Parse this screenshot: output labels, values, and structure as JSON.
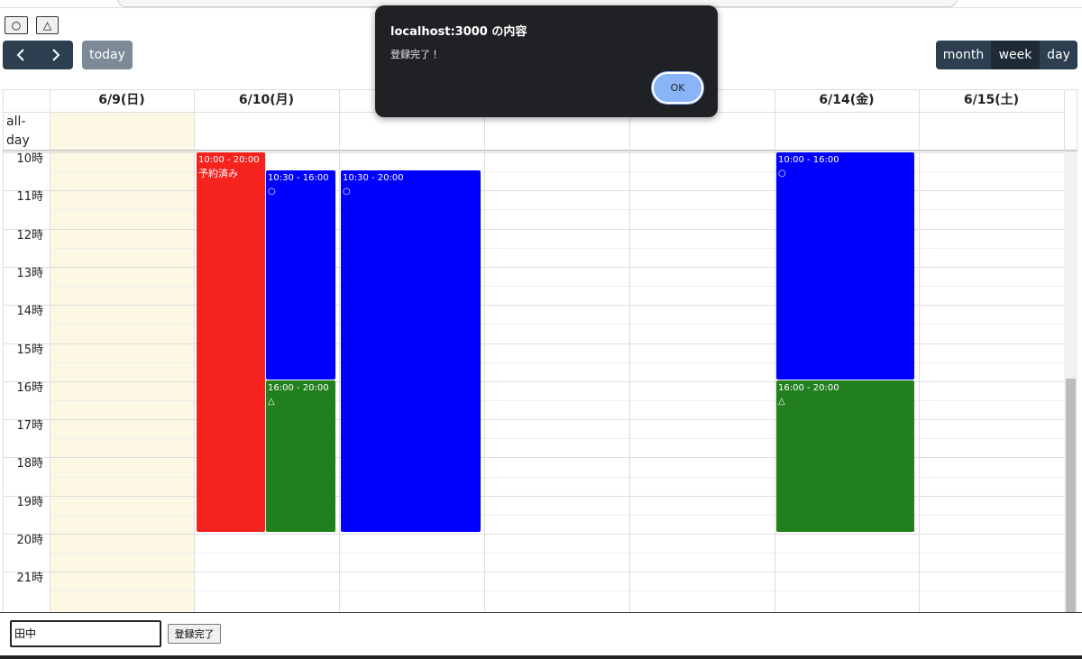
{
  "toolbar": {
    "filters": [
      "○",
      "△"
    ],
    "today": "today",
    "views": [
      "month",
      "week",
      "day"
    ]
  },
  "calendar": {
    "headers": [
      "6/9(日)",
      "6/10(月)",
      "6/14(金)",
      "6/15(土)"
    ],
    "all_day": "all-day",
    "hours": [
      "10時",
      "11時",
      "12時",
      "13時",
      "14時",
      "15時",
      "16時",
      "17時",
      "18時",
      "19時",
      "20時",
      "21時"
    ],
    "events": [
      {
        "time": "10:00 - 20:00",
        "title": "予約済み"
      },
      {
        "time": "10:30 - 16:00",
        "title": "○"
      },
      {
        "time": "16:00 - 20:00",
        "title": "△"
      },
      {
        "time": "10:30 - 20:00",
        "title": "○"
      },
      {
        "time": "10:00 - 16:00",
        "title": "○"
      },
      {
        "time": "16:00 - 20:00",
        "title": "△"
      }
    ]
  },
  "form": {
    "name": "田中",
    "submit": "登録完了"
  },
  "dialog": {
    "title": "localhost:3000 の内容",
    "message": "登録完了！",
    "ok": "OK"
  }
}
